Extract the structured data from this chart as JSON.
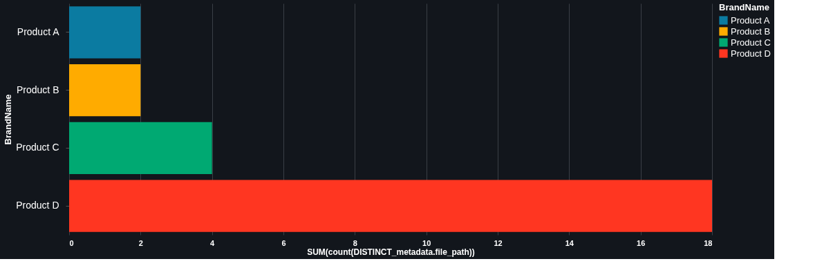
{
  "chart_data": {
    "type": "bar",
    "orientation": "horizontal",
    "categories": [
      "Product A",
      "Product B",
      "Product C",
      "Product D"
    ],
    "series": [
      {
        "name": "Product A",
        "color": "#0b7ba1",
        "values": [
          2,
          null,
          null,
          null
        ]
      },
      {
        "name": "Product B",
        "color": "#ffab00",
        "values": [
          null,
          2,
          null,
          null
        ]
      },
      {
        "name": "Product C",
        "color": "#00a972",
        "values": [
          null,
          null,
          4,
          null
        ]
      },
      {
        "name": "Product D",
        "color": "#ff3621",
        "values": [
          null,
          null,
          null,
          18
        ]
      }
    ],
    "xlabel": "SUM(count(DISTINCT_metadata.file_path))",
    "ylabel": "BrandName",
    "legend_title": "BrandName",
    "xlim": [
      0,
      18
    ],
    "xticks": [
      0,
      2,
      4,
      6,
      8,
      10,
      12,
      14,
      16,
      18
    ],
    "grid": "x",
    "legend": "top right"
  }
}
